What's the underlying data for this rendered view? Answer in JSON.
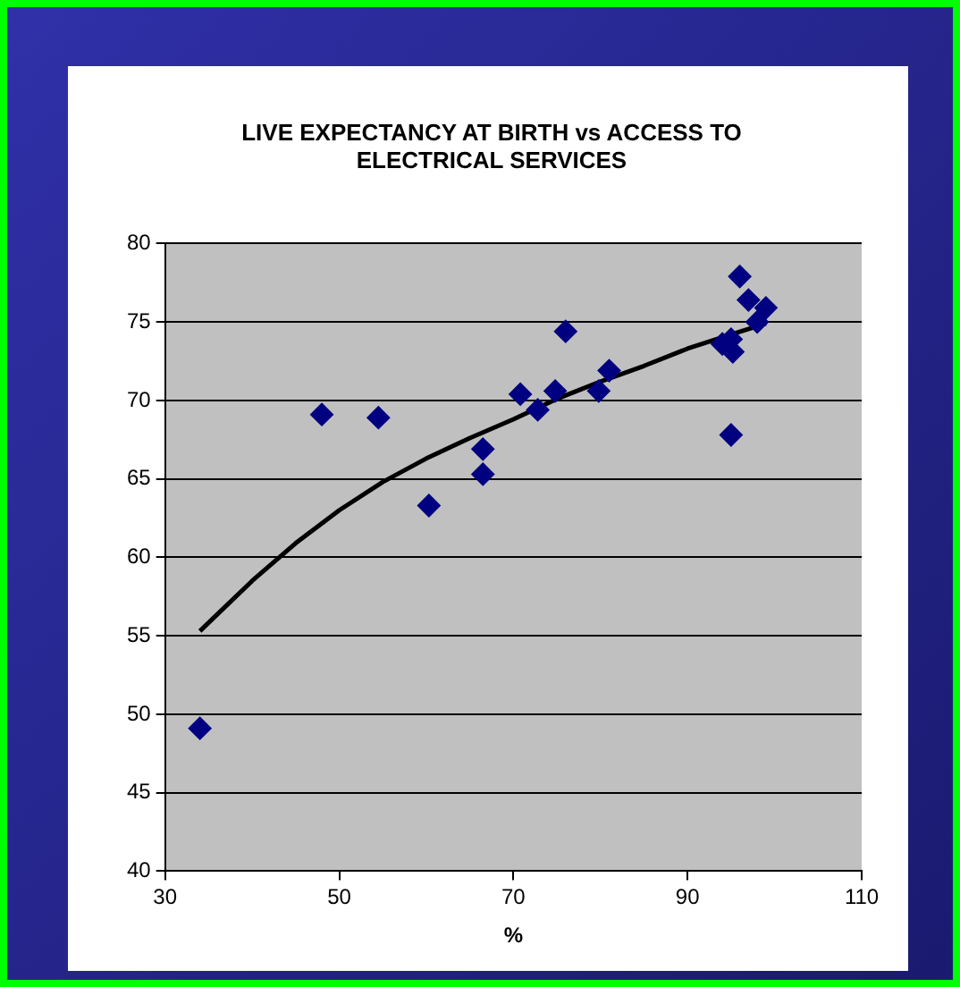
{
  "chart_data": {
    "type": "scatter",
    "title": "LIVE EXPECTANCY AT BIRTH vs ACCESS TO ELECTRICAL SERVICES",
    "xlabel": "%",
    "xlim": [
      30,
      110
    ],
    "xticks": [
      30,
      50,
      70,
      90,
      110
    ],
    "ylim": [
      40,
      80
    ],
    "yticks": [
      40,
      45,
      50,
      55,
      60,
      65,
      70,
      75,
      80
    ],
    "grid": "y",
    "legend": false,
    "marker": "diamond",
    "series": [
      {
        "color": "#000080",
        "x": [
          34,
          48,
          54.5,
          60.3,
          66.5,
          66.5,
          70.8,
          72.8,
          74.8,
          76,
          79.8,
          81,
          94,
          95,
          95,
          95.2,
          96,
          97,
          98,
          99
        ],
        "values": [
          49.1,
          69.1,
          68.9,
          63.3,
          66.9,
          65.3,
          70.4,
          69.4,
          70.6,
          74.4,
          70.6,
          71.9,
          73.6,
          73.9,
          67.8,
          73.1,
          77.9,
          76.4,
          75,
          75.9
        ]
      },
      {
        "type": "line",
        "color": "#000000",
        "marker": "none",
        "x": [
          34,
          40,
          45,
          50,
          55,
          60,
          65,
          70,
          75,
          80,
          85,
          90,
          95,
          99
        ],
        "values": [
          55.3,
          58.5,
          60.9,
          63,
          64.8,
          66.3,
          67.6,
          68.8,
          70.1,
          71.2,
          72.2,
          73.3,
          74.2,
          74.9
        ]
      }
    ]
  }
}
